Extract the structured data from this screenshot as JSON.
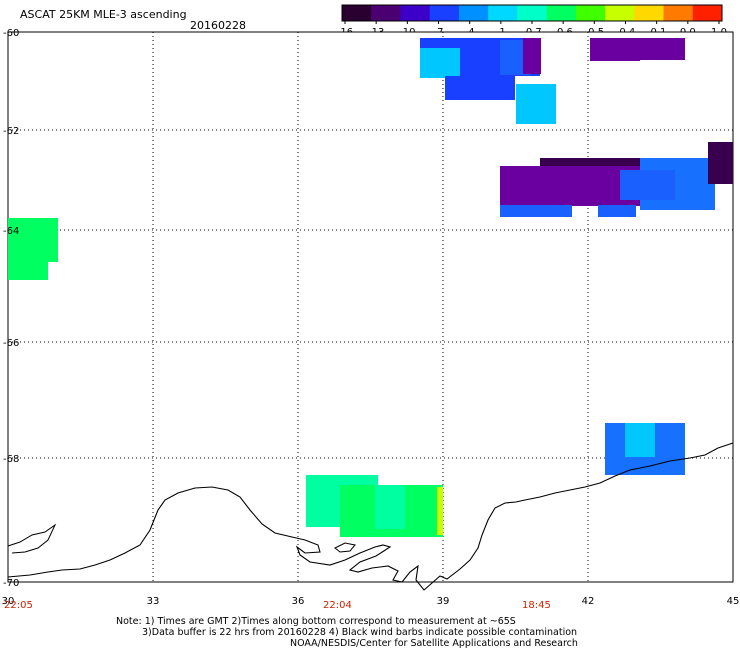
{
  "header": {
    "title": "ASCAT 25KM MLE-3 ascending",
    "date": "20160228"
  },
  "colorbar": {
    "labels": [
      "-16",
      "-13",
      "-10",
      "-7",
      "-4",
      "-1",
      "-0.7",
      "-0.6",
      "-0.5",
      "-0.4",
      "-0.1",
      "0.0",
      "1.0"
    ],
    "colors": [
      "#2a0030",
      "#4a0070",
      "#3c00c8",
      "#1a40ff",
      "#0090ff",
      "#00d8ff",
      "#00ffc8",
      "#00ff60",
      "#40ff00",
      "#c8ff00",
      "#ffd800",
      "#ff7a00",
      "#ff2000"
    ]
  },
  "map": {
    "lon_range": [
      30,
      45
    ],
    "lat_range": [
      -70,
      -60
    ],
    "lon_ticks": [
      "30",
      "33",
      "36",
      "39",
      "42",
      "45"
    ],
    "lat_ticks": [
      "-60",
      "-62",
      "-64",
      "-66",
      "-68",
      "-70"
    ],
    "time_labels": [
      "22:05",
      "22:04",
      "18:45"
    ]
  },
  "swaths": [
    {
      "id": "A",
      "color": "#1a40ff"
    },
    {
      "id": "B",
      "color": "#00c8ff"
    },
    {
      "id": "C",
      "color": "#6a00a0"
    },
    {
      "id": "D",
      "color": "#3a0050"
    },
    {
      "id": "E",
      "color": "#1a60ff"
    },
    {
      "id": "F",
      "color": "#00ff60"
    },
    {
      "id": "G",
      "color": "#00ffa0"
    },
    {
      "id": "H",
      "color": "#1870ff"
    }
  ],
  "notes": {
    "line1": "Note: 1) Times are GMT 2)Times along bottom correspond to measurement at ~65S",
    "line2": "3)Data buffer is 22 hrs from 20160228 4) Black wind barbs indicate possible contamination",
    "line3": "NOAA/NESDIS/Center for Satellite Applications and Research"
  }
}
